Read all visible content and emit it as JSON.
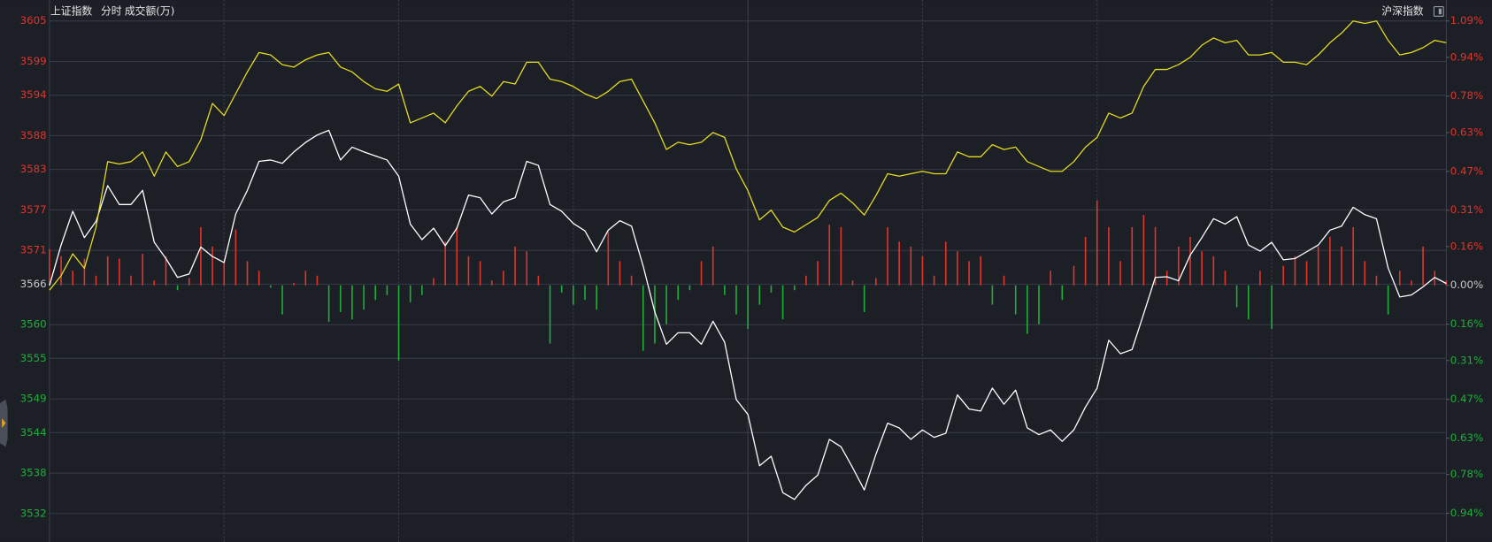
{
  "chart_data": {
    "type": "line",
    "subtitle": "分时",
    "ylim": [
      3527.8,
      3605
    ],
    "yticks": [
      3605,
      3599,
      3594,
      3588,
      3583,
      3577,
      3571,
      3566,
      3560,
      3555,
      3549,
      3544,
      3538,
      3532
    ],
    "y2lim": [
      -1.058,
      1.09
    ],
    "y2ticks": [
      {
        "value": 1.09,
        "label": "1.09%"
      },
      {
        "value": 0.94,
        "label": "0.94%"
      },
      {
        "value": 0.78,
        "label": "0.78%"
      },
      {
        "value": 0.63,
        "label": "0.63%"
      },
      {
        "value": 0.47,
        "label": "0.47%"
      },
      {
        "value": 0.31,
        "label": "0.31%"
      },
      {
        "value": 0.16,
        "label": "0.16%"
      },
      {
        "value": 0,
        "label": "0.00%"
      },
      {
        "value": -0.16,
        "label": "0.16%"
      },
      {
        "value": -0.31,
        "label": "0.31%"
      },
      {
        "value": -0.47,
        "label": "0.47%"
      },
      {
        "value": -0.63,
        "label": "0.63%"
      },
      {
        "value": -0.78,
        "label": "0.78%"
      },
      {
        "value": -0.94,
        "label": "0.94%"
      }
    ],
    "grid": true,
    "up_color": "#e0352b",
    "down_color": "#1fae3a",
    "series": [
      {
        "name": "上证指数",
        "color": "#ffffff",
        "values": [
          3565.8,
          3571.8,
          3576.8,
          3572.9,
          3575.3,
          3580.6,
          3577.8,
          3577.8,
          3579.9,
          3572.2,
          3569.8,
          3567.0,
          3567.5,
          3571.5,
          3570.1,
          3569.2,
          3576.4,
          3579.9,
          3584.2,
          3584.4,
          3583.9,
          3585.6,
          3587.0,
          3588.1,
          3588.8,
          3584.4,
          3586.3,
          3585.6,
          3585.0,
          3584.4,
          3582.0,
          3574.9,
          3572.6,
          3574.3,
          3571.7,
          3574.3,
          3579.2,
          3578.8,
          3576.4,
          3578.2,
          3578.8,
          3584.2,
          3583.6,
          3577.8,
          3576.8,
          3575.0,
          3573.9,
          3570.8,
          3574.0,
          3575.4,
          3574.6,
          3568.7,
          3561.9,
          3557.1,
          3558.8,
          3558.8,
          3557.1,
          3560.5,
          3557.4,
          3548.9,
          3546.7,
          3539.1,
          3540.5,
          3535.1,
          3534.1,
          3536.2,
          3537.7,
          3543.0,
          3541.9,
          3538.8,
          3535.5,
          3540.8,
          3545.4,
          3544.7,
          3543.0,
          3544.4,
          3543.3,
          3543.9,
          3549.6,
          3547.5,
          3547.2,
          3550.6,
          3548.2,
          3550.3,
          3544.7,
          3543.7,
          3544.4,
          3542.7,
          3544.4,
          3547.8,
          3550.6,
          3557.7,
          3555.7,
          3556.3,
          3561.6,
          3567.0,
          3567.1,
          3566.5,
          3570.3,
          3572.9,
          3575.7,
          3574.9,
          3576.0,
          3571.8,
          3570.9,
          3572.2,
          3569.6,
          3569.8,
          3570.8,
          3571.8,
          3574.0,
          3574.6,
          3577.4,
          3576.3,
          3575.7,
          3568.4,
          3564.1,
          3564.4,
          3565.6,
          3567.0,
          3566.1
        ]
      },
      {
        "name": "沪深指数",
        "color": "#e6dc1e",
        "axis": "y2",
        "values": [
          -0.02,
          0.04,
          0.13,
          0.07,
          0.24,
          0.51,
          0.5,
          0.51,
          0.55,
          0.45,
          0.55,
          0.49,
          0.51,
          0.6,
          0.75,
          0.7,
          0.79,
          0.88,
          0.96,
          0.95,
          0.91,
          0.9,
          0.93,
          0.95,
          0.96,
          0.9,
          0.88,
          0.84,
          0.81,
          0.8,
          0.83,
          0.67,
          0.69,
          0.71,
          0.67,
          0.74,
          0.8,
          0.82,
          0.78,
          0.84,
          0.83,
          0.92,
          0.92,
          0.85,
          0.84,
          0.82,
          0.79,
          0.77,
          0.8,
          0.84,
          0.85,
          0.76,
          0.67,
          0.56,
          0.59,
          0.58,
          0.59,
          0.63,
          0.61,
          0.48,
          0.39,
          0.27,
          0.31,
          0.24,
          0.22,
          0.25,
          0.28,
          0.35,
          0.38,
          0.34,
          0.29,
          0.37,
          0.46,
          0.45,
          0.46,
          0.47,
          0.46,
          0.46,
          0.55,
          0.53,
          0.53,
          0.58,
          0.56,
          0.57,
          0.51,
          0.49,
          0.47,
          0.47,
          0.51,
          0.57,
          0.61,
          0.71,
          0.69,
          0.71,
          0.82,
          0.89,
          0.89,
          0.91,
          0.94,
          0.99,
          1.02,
          1.0,
          1.01,
          0.95,
          0.95,
          0.96,
          0.92,
          0.92,
          0.91,
          0.95,
          1.0,
          1.04,
          1.09,
          1.08,
          1.09,
          1.01,
          0.95,
          0.96,
          0.98,
          1.01,
          1.0
        ]
      }
    ],
    "volume": {
      "name": "成交额(万)",
      "axis": "y2",
      "values": [
        0.15,
        0.12,
        0.06,
        0.11,
        0.04,
        0.12,
        0.11,
        0.04,
        0.13,
        0.02,
        0.12,
        -0.02,
        0.03,
        0.24,
        0.16,
        0.1,
        0.23,
        0.1,
        0.06,
        -0.01,
        -0.12,
        0.01,
        0.06,
        0.04,
        -0.15,
        -0.11,
        -0.14,
        -0.1,
        -0.06,
        -0.04,
        -0.31,
        -0.07,
        -0.04,
        0.03,
        0.18,
        0.24,
        0.12,
        0.1,
        0.02,
        0.06,
        0.16,
        0.14,
        0.04,
        -0.24,
        -0.03,
        -0.08,
        -0.06,
        -0.1,
        0.22,
        0.1,
        0.04,
        -0.27,
        -0.24,
        -0.16,
        -0.06,
        -0.02,
        0.1,
        0.16,
        -0.04,
        -0.12,
        -0.18,
        -0.08,
        -0.03,
        -0.14,
        -0.02,
        0.04,
        0.1,
        0.25,
        0.24,
        0.02,
        -0.11,
        0.03,
        0.24,
        0.18,
        0.16,
        0.12,
        0.04,
        0.18,
        0.14,
        0.1,
        0.12,
        -0.08,
        0.04,
        -0.12,
        -0.2,
        -0.16,
        0.06,
        -0.06,
        0.08,
        0.2,
        0.35,
        0.24,
        0.1,
        0.24,
        0.29,
        0.24,
        0.06,
        0.16,
        0.2,
        0.14,
        0.12,
        0.06,
        -0.09,
        -0.14,
        0.06,
        -0.18,
        0.08,
        0.12,
        0.1,
        0.16,
        0.2,
        0.16,
        0.24,
        0.1,
        0.04,
        -0.12,
        0.06,
        0.02,
        0.16,
        0.06,
        0.02
      ]
    }
  }
}
